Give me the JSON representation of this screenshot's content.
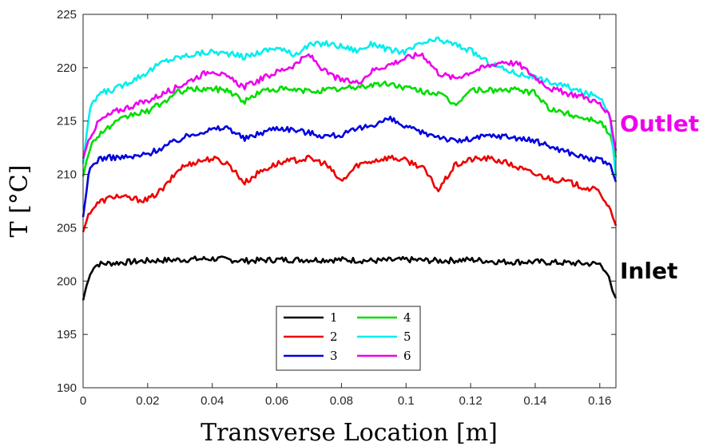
{
  "chart_data": {
    "type": "line",
    "xlabel": "Transverse Location [m]",
    "ylabel": "T [°C]",
    "xlim": [
      0,
      0.165
    ],
    "ylim": [
      190,
      225
    ],
    "xticks": [
      0,
      0.02,
      0.04,
      0.06,
      0.08,
      0.1,
      0.12,
      0.14,
      0.16
    ],
    "xtick_labels": [
      "0",
      "0.02",
      "0.04",
      "0.06",
      "0.08",
      "0.1",
      "0.12",
      "0.14",
      "0.16"
    ],
    "yticks": [
      190,
      195,
      200,
      205,
      210,
      215,
      220,
      225
    ],
    "ytick_labels": [
      "190",
      "195",
      "200",
      "205",
      "210",
      "215",
      "220",
      "225"
    ],
    "legend_position": "lower-center",
    "annotations": [
      {
        "text": "Outlet",
        "color": "#ee00ee",
        "y": 214.8
      },
      {
        "text": "Inlet",
        "color": "#000000",
        "y": 201.0
      }
    ],
    "series": [
      {
        "name": "1",
        "color": "#000000",
        "x": [
          0,
          0.001,
          0.003,
          0.005,
          0.01,
          0.02,
          0.03,
          0.04,
          0.05,
          0.06,
          0.07,
          0.08,
          0.09,
          0.1,
          0.11,
          0.12,
          0.13,
          0.14,
          0.15,
          0.16,
          0.162,
          0.164,
          0.165
        ],
        "y": [
          198.2,
          199.5,
          201.3,
          201.6,
          201.7,
          201.9,
          202.0,
          202.1,
          201.9,
          202.0,
          202.0,
          202.0,
          201.9,
          202.0,
          201.9,
          202.0,
          201.8,
          201.8,
          201.7,
          201.6,
          201.0,
          199.0,
          198.4
        ]
      },
      {
        "name": "2",
        "color": "#ee0000",
        "x": [
          0,
          0.002,
          0.005,
          0.01,
          0.015,
          0.02,
          0.025,
          0.03,
          0.035,
          0.04,
          0.045,
          0.05,
          0.055,
          0.06,
          0.065,
          0.07,
          0.075,
          0.08,
          0.085,
          0.09,
          0.095,
          0.1,
          0.105,
          0.11,
          0.115,
          0.12,
          0.125,
          0.13,
          0.135,
          0.14,
          0.145,
          0.15,
          0.155,
          0.16,
          0.163,
          0.165
        ],
        "y": [
          204.6,
          206.5,
          207.4,
          208.0,
          207.7,
          207.6,
          208.7,
          210.6,
          211.2,
          211.5,
          211.0,
          209.2,
          210.3,
          211.0,
          211.3,
          211.5,
          211.0,
          209.3,
          210.9,
          211.3,
          211.6,
          211.3,
          210.7,
          208.5,
          210.8,
          211.4,
          211.5,
          211.2,
          210.6,
          210.0,
          209.6,
          209.3,
          208.8,
          208.4,
          206.8,
          205.2
        ]
      },
      {
        "name": "3",
        "color": "#0000dd",
        "x": [
          0,
          0.002,
          0.005,
          0.01,
          0.015,
          0.02,
          0.025,
          0.03,
          0.035,
          0.04,
          0.045,
          0.05,
          0.055,
          0.06,
          0.065,
          0.07,
          0.075,
          0.08,
          0.085,
          0.09,
          0.095,
          0.1,
          0.105,
          0.11,
          0.115,
          0.12,
          0.125,
          0.13,
          0.135,
          0.14,
          0.145,
          0.15,
          0.155,
          0.16,
          0.163,
          0.165
        ],
        "y": [
          206.0,
          210.5,
          211.5,
          211.6,
          211.6,
          211.9,
          212.6,
          213.3,
          213.9,
          214.2,
          214.4,
          213.3,
          213.9,
          214.4,
          214.2,
          213.9,
          213.6,
          213.7,
          214.2,
          214.7,
          215.2,
          214.4,
          213.9,
          213.6,
          213.1,
          213.3,
          213.6,
          213.6,
          213.4,
          213.1,
          212.6,
          212.1,
          211.6,
          211.3,
          211.0,
          209.3
        ]
      },
      {
        "name": "4",
        "color": "#00dd00",
        "x": [
          0,
          0.002,
          0.005,
          0.01,
          0.015,
          0.02,
          0.025,
          0.03,
          0.035,
          0.04,
          0.045,
          0.05,
          0.055,
          0.06,
          0.065,
          0.07,
          0.075,
          0.08,
          0.085,
          0.09,
          0.095,
          0.1,
          0.105,
          0.11,
          0.115,
          0.12,
          0.125,
          0.13,
          0.135,
          0.14,
          0.145,
          0.15,
          0.155,
          0.16,
          0.163,
          0.165
        ],
        "y": [
          209.8,
          212.5,
          213.8,
          214.8,
          215.6,
          215.9,
          216.8,
          217.8,
          218.0,
          218.0,
          217.9,
          216.8,
          217.8,
          218.0,
          217.9,
          217.8,
          217.9,
          218.0,
          218.2,
          218.4,
          218.5,
          218.1,
          217.8,
          217.6,
          216.5,
          217.9,
          217.9,
          217.9,
          217.9,
          217.6,
          216.0,
          215.7,
          215.3,
          215.0,
          213.8,
          211.6
        ]
      },
      {
        "name": "5",
        "color": "#00eeee",
        "x": [
          0,
          0.002,
          0.005,
          0.01,
          0.015,
          0.02,
          0.025,
          0.03,
          0.035,
          0.04,
          0.045,
          0.05,
          0.055,
          0.06,
          0.065,
          0.07,
          0.075,
          0.08,
          0.085,
          0.09,
          0.095,
          0.1,
          0.105,
          0.11,
          0.115,
          0.12,
          0.125,
          0.13,
          0.135,
          0.14,
          0.145,
          0.15,
          0.155,
          0.16,
          0.163,
          0.165
        ],
        "y": [
          211.0,
          216.0,
          217.6,
          218.0,
          218.8,
          219.6,
          220.6,
          221.0,
          221.3,
          221.5,
          221.3,
          221.0,
          221.5,
          221.9,
          221.2,
          222.1,
          222.3,
          222.0,
          221.6,
          222.3,
          221.6,
          221.5,
          222.3,
          222.6,
          222.2,
          221.6,
          220.6,
          219.9,
          219.4,
          219.1,
          218.6,
          218.2,
          217.6,
          217.3,
          215.8,
          209.8
        ]
      },
      {
        "name": "6",
        "color": "#ee00ee",
        "x": [
          0,
          0.002,
          0.005,
          0.01,
          0.015,
          0.02,
          0.025,
          0.03,
          0.035,
          0.04,
          0.045,
          0.05,
          0.055,
          0.06,
          0.065,
          0.07,
          0.075,
          0.08,
          0.085,
          0.09,
          0.095,
          0.1,
          0.105,
          0.11,
          0.115,
          0.12,
          0.125,
          0.13,
          0.135,
          0.14,
          0.145,
          0.15,
          0.155,
          0.16,
          0.163,
          0.165
        ],
        "y": [
          211.5,
          213.5,
          215.0,
          215.9,
          216.4,
          216.9,
          217.6,
          218.3,
          219.1,
          219.8,
          219.0,
          218.2,
          218.9,
          219.6,
          220.2,
          221.2,
          219.6,
          218.8,
          218.6,
          219.8,
          220.3,
          220.9,
          221.3,
          219.5,
          219.0,
          219.6,
          220.1,
          220.6,
          220.3,
          219.1,
          218.0,
          217.6,
          217.3,
          216.6,
          215.4,
          212.2
        ]
      }
    ]
  }
}
